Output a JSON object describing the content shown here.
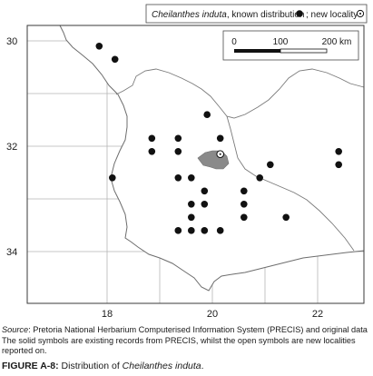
{
  "map": {
    "legend": {
      "species": "Cheilanthes induta",
      "known_text": ", known distribution",
      "sep_text": "; new locality"
    },
    "scale_bar": {
      "labels": [
        "0",
        "100",
        "200 km"
      ]
    },
    "x_ticks": [
      {
        "label": "18",
        "lon": 18
      },
      {
        "label": "20",
        "lon": 20
      },
      {
        "label": "22",
        "lon": 22
      }
    ],
    "y_ticks": [
      {
        "label": "30",
        "lat": 30
      },
      {
        "label": "32",
        "lat": 32
      },
      {
        "label": "34",
        "lat": 34
      }
    ],
    "known_localities": [
      [
        17.85,
        30.1
      ],
      [
        18.15,
        30.35
      ],
      [
        19.9,
        31.4
      ],
      [
        18.85,
        31.85
      ],
      [
        19.35,
        31.85
      ],
      [
        20.15,
        31.85
      ],
      [
        18.85,
        32.1
      ],
      [
        19.35,
        32.1
      ],
      [
        18.1,
        32.6
      ],
      [
        19.35,
        32.6
      ],
      [
        19.6,
        32.6
      ],
      [
        20.9,
        32.6
      ],
      [
        21.1,
        32.35
      ],
      [
        22.4,
        32.1
      ],
      [
        22.4,
        32.35
      ],
      [
        19.85,
        32.85
      ],
      [
        20.6,
        32.85
      ],
      [
        19.6,
        33.1
      ],
      [
        19.85,
        33.1
      ],
      [
        20.6,
        33.1
      ],
      [
        19.6,
        33.35
      ],
      [
        20.6,
        33.35
      ],
      [
        21.4,
        33.35
      ],
      [
        19.35,
        33.6
      ],
      [
        19.6,
        33.6
      ],
      [
        19.85,
        33.6
      ],
      [
        20.15,
        33.6
      ]
    ],
    "new_locality": [
      20.15,
      32.15
    ]
  },
  "caption": {
    "source_label": "Source",
    "source_text": ": Pretoria National Herbarium Computerised Information System (PRECIS) and original data",
    "note_text": "The solid symbols are existing records from PRECIS, whilst the open symbols are new localities reported on."
  },
  "figure": {
    "label": "FIGURE A-8:",
    "title_prefix": " Distribution of ",
    "species": "Cheilanthes induta",
    "title_suffix": "."
  }
}
